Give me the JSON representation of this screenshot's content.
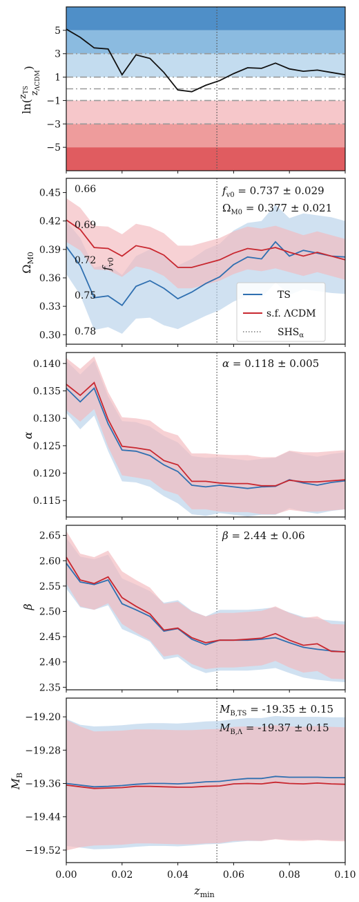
{
  "chart_data": [
    {
      "id": "ln_ratio",
      "type": "line",
      "ylabel": "ln(z_TS / z_ΛCDM)",
      "ylim": [
        -7,
        7
      ],
      "xlim": [
        0,
        0.1
      ],
      "yticks": [
        -5,
        -3,
        -1,
        1,
        3,
        5
      ],
      "ytick_labels": [
        "−5",
        "−3",
        "−1",
        "1",
        "3",
        "5"
      ],
      "bands": [
        {
          "from": 5,
          "to": 7,
          "color": "#4f8fc8"
        },
        {
          "from": 3,
          "to": 5,
          "color": "#8bbbe0"
        },
        {
          "from": 1,
          "to": 3,
          "color": "#c3dcef"
        },
        {
          "from": -1,
          "to": 1,
          "color": "#ffffff"
        },
        {
          "from": -3,
          "to": -1,
          "color": "#f6c7ca"
        },
        {
          "from": -5,
          "to": -3,
          "color": "#ee9c9c"
        },
        {
          "from": -7,
          "to": -5,
          "color": "#e05c60"
        }
      ],
      "hlines": [
        {
          "y": 3,
          "style": "dashdot"
        },
        {
          "y": 1,
          "style": "dashdot"
        },
        {
          "y": 0,
          "style": "dashdot"
        },
        {
          "y": -1,
          "style": "dashdot"
        },
        {
          "y": -3,
          "style": "dashdot"
        }
      ],
      "vline": 0.054,
      "series": [
        {
          "x": [
            0,
            0.005,
            0.01,
            0.015,
            0.02,
            0.025,
            0.03,
            0.035,
            0.04,
            0.045,
            0.05,
            0.055,
            0.06,
            0.065,
            0.07,
            0.075,
            0.08,
            0.085,
            0.09,
            0.095,
            0.1
          ],
          "y": [
            5.1,
            4.4,
            3.5,
            3.4,
            1.2,
            2.9,
            2.6,
            1.4,
            -0.1,
            -0.25,
            0.3,
            0.7,
            1.3,
            1.8,
            1.75,
            2.2,
            1.7,
            1.5,
            1.6,
            1.4,
            1.2
          ],
          "color": "#111111"
        }
      ]
    },
    {
      "id": "omega",
      "type": "line",
      "ylabel": "Ω_M0",
      "ylim": [
        0.29,
        0.465
      ],
      "xlim": [
        0,
        0.1
      ],
      "yticks": [
        0.3,
        0.33,
        0.36,
        0.39,
        0.42,
        0.45
      ],
      "ytick_labels": [
        "0.30",
        "0.33",
        "0.36",
        "0.39",
        "0.42",
        "0.45"
      ],
      "right_label": "f_v0",
      "inner_ticks": [
        "0.66",
        "0.69",
        "0.72",
        "0.75",
        "0.78"
      ],
      "annotations": [
        "f_v0 = 0.737 ± 0.029",
        "Ω_M0 = 0.377 ± 0.021"
      ],
      "legend": [
        "TS",
        "s.f. ΛCDM",
        "SHS_α"
      ],
      "vline": 0.054,
      "series": [
        {
          "name": "TS",
          "color": "#2f6fb0",
          "band": "#b7d1ea",
          "x": [
            0,
            0.005,
            0.01,
            0.015,
            0.02,
            0.025,
            0.03,
            0.035,
            0.04,
            0.045,
            0.05,
            0.055,
            0.06,
            0.065,
            0.07,
            0.075,
            0.08,
            0.085,
            0.09,
            0.095,
            0.1
          ],
          "y": [
            0.393,
            0.373,
            0.339,
            0.341,
            0.331,
            0.351,
            0.357,
            0.349,
            0.338,
            0.345,
            0.354,
            0.361,
            0.374,
            0.382,
            0.38,
            0.398,
            0.383,
            0.389,
            0.386,
            0.383,
            0.382
          ],
          "lo": [
            0.364,
            0.342,
            0.305,
            0.308,
            0.301,
            0.317,
            0.318,
            0.31,
            0.306,
            0.313,
            0.32,
            0.326,
            0.335,
            0.341,
            0.339,
            0.355,
            0.342,
            0.348,
            0.346,
            0.344,
            0.343
          ],
          "hi": [
            0.42,
            0.402,
            0.371,
            0.374,
            0.363,
            0.383,
            0.39,
            0.383,
            0.373,
            0.38,
            0.39,
            0.396,
            0.41,
            0.418,
            0.42,
            0.437,
            0.423,
            0.428,
            0.426,
            0.424,
            0.42
          ]
        },
        {
          "name": "s.f. ΛCDM",
          "color": "#c8272f",
          "band": "#f2b9bd",
          "x": [
            0,
            0.005,
            0.01,
            0.015,
            0.02,
            0.025,
            0.03,
            0.035,
            0.04,
            0.045,
            0.05,
            0.055,
            0.06,
            0.065,
            0.07,
            0.075,
            0.08,
            0.085,
            0.09,
            0.095,
            0.1
          ],
          "y": [
            0.421,
            0.411,
            0.392,
            0.391,
            0.383,
            0.394,
            0.391,
            0.384,
            0.371,
            0.371,
            0.375,
            0.379,
            0.386,
            0.391,
            0.389,
            0.392,
            0.387,
            0.383,
            0.387,
            0.383,
            0.379
          ],
          "lo": [
            0.398,
            0.389,
            0.369,
            0.368,
            0.361,
            0.372,
            0.369,
            0.362,
            0.349,
            0.349,
            0.353,
            0.357,
            0.364,
            0.369,
            0.367,
            0.37,
            0.366,
            0.362,
            0.366,
            0.362,
            0.358
          ],
          "hi": [
            0.444,
            0.434,
            0.415,
            0.414,
            0.406,
            0.417,
            0.414,
            0.407,
            0.394,
            0.394,
            0.398,
            0.402,
            0.409,
            0.414,
            0.412,
            0.415,
            0.41,
            0.405,
            0.409,
            0.405,
            0.401
          ]
        }
      ]
    },
    {
      "id": "alpha",
      "type": "line",
      "ylabel": "α",
      "ylim": [
        0.112,
        0.142
      ],
      "xlim": [
        0,
        0.1
      ],
      "yticks": [
        0.115,
        0.12,
        0.125,
        0.13,
        0.135,
        0.14
      ],
      "ytick_labels": [
        "0.115",
        "0.120",
        "0.125",
        "0.130",
        "0.135",
        "0.140"
      ],
      "annotations": [
        "α = 0.118 ± 0.005"
      ],
      "vline": 0.054,
      "series": [
        {
          "name": "TS",
          "color": "#2f6fb0",
          "band": "#b7d1ea",
          "x": [
            0,
            0.005,
            0.01,
            0.015,
            0.02,
            0.025,
            0.03,
            0.035,
            0.04,
            0.045,
            0.05,
            0.055,
            0.06,
            0.065,
            0.07,
            0.075,
            0.08,
            0.085,
            0.09,
            0.095,
            0.1
          ],
          "y": [
            0.1355,
            0.133,
            0.1355,
            0.129,
            0.1242,
            0.124,
            0.1232,
            0.1215,
            0.1203,
            0.1178,
            0.1175,
            0.1178,
            0.1175,
            0.1172,
            0.1175,
            0.1176,
            0.1188,
            0.1182,
            0.1178,
            0.1183,
            0.1186
          ],
          "lo": [
            0.131,
            0.128,
            0.1305,
            0.124,
            0.1185,
            0.1183,
            0.1175,
            0.1158,
            0.1145,
            0.1125,
            0.1122,
            0.1127,
            0.1124,
            0.1121,
            0.1124,
            0.1124,
            0.1136,
            0.113,
            0.1126,
            0.1131,
            0.1134
          ],
          "hi": [
            0.1405,
            0.138,
            0.1405,
            0.134,
            0.1295,
            0.1293,
            0.1285,
            0.1268,
            0.1256,
            0.1231,
            0.1228,
            0.1229,
            0.1226,
            0.1223,
            0.1226,
            0.1228,
            0.124,
            0.1234,
            0.123,
            0.1235,
            0.1238
          ]
        },
        {
          "name": "s.f. ΛCDM",
          "color": "#c8272f",
          "band": "#f2b9bd",
          "x": [
            0,
            0.005,
            0.01,
            0.015,
            0.02,
            0.025,
            0.03,
            0.035,
            0.04,
            0.045,
            0.05,
            0.055,
            0.06,
            0.065,
            0.07,
            0.075,
            0.08,
            0.085,
            0.09,
            0.095,
            0.1
          ],
          "y": [
            0.1362,
            0.1342,
            0.1365,
            0.1298,
            0.1249,
            0.1246,
            0.1242,
            0.1223,
            0.1215,
            0.1185,
            0.1185,
            0.1182,
            0.1181,
            0.1181,
            0.1177,
            0.1177,
            0.1187,
            0.1184,
            0.1184,
            0.1186,
            0.1188
          ],
          "lo": [
            0.1315,
            0.1294,
            0.1317,
            0.1248,
            0.1196,
            0.1192,
            0.1188,
            0.1169,
            0.1161,
            0.1134,
            0.1134,
            0.113,
            0.1129,
            0.1129,
            0.1125,
            0.1125,
            0.1133,
            0.113,
            0.113,
            0.1132,
            0.1134
          ],
          "hi": [
            0.141,
            0.139,
            0.1413,
            0.1348,
            0.1302,
            0.13,
            0.1296,
            0.1277,
            0.1269,
            0.1236,
            0.1236,
            0.1234,
            0.1233,
            0.1233,
            0.1229,
            0.1229,
            0.1241,
            0.1238,
            0.1238,
            0.124,
            0.1242
          ]
        }
      ]
    },
    {
      "id": "beta",
      "type": "line",
      "ylabel": "β",
      "ylim": [
        2.345,
        2.67
      ],
      "xlim": [
        0,
        0.1
      ],
      "yticks": [
        2.35,
        2.4,
        2.45,
        2.5,
        2.55,
        2.6,
        2.65
      ],
      "ytick_labels": [
        "2.35",
        "2.40",
        "2.45",
        "2.50",
        "2.55",
        "2.60",
        "2.65"
      ],
      "annotations": [
        "β = 2.44 ± 0.06"
      ],
      "vline": 0.054,
      "series": [
        {
          "name": "TS",
          "color": "#2f6fb0",
          "band": "#b7d1ea",
          "x": [
            0,
            0.005,
            0.01,
            0.015,
            0.02,
            0.025,
            0.03,
            0.035,
            0.04,
            0.045,
            0.05,
            0.055,
            0.06,
            0.065,
            0.07,
            0.075,
            0.08,
            0.085,
            0.09,
            0.095,
            0.1
          ],
          "y": [
            2.595,
            2.558,
            2.553,
            2.562,
            2.515,
            2.503,
            2.49,
            2.461,
            2.466,
            2.445,
            2.434,
            2.443,
            2.443,
            2.443,
            2.445,
            2.448,
            2.438,
            2.429,
            2.425,
            2.422,
            2.42
          ],
          "lo": [
            2.545,
            2.508,
            2.503,
            2.512,
            2.465,
            2.453,
            2.44,
            2.405,
            2.41,
            2.389,
            2.378,
            2.383,
            2.383,
            2.383,
            2.385,
            2.388,
            2.378,
            2.369,
            2.365,
            2.362,
            2.36
          ],
          "hi": [
            2.645,
            2.608,
            2.603,
            2.612,
            2.565,
            2.553,
            2.54,
            2.517,
            2.522,
            2.501,
            2.49,
            2.503,
            2.503,
            2.503,
            2.505,
            2.508,
            2.498,
            2.489,
            2.485,
            2.482,
            2.48
          ]
        },
        {
          "name": "s.f. ΛCDM",
          "color": "#c8272f",
          "band": "#f2b9bd",
          "x": [
            0,
            0.005,
            0.01,
            0.015,
            0.02,
            0.025,
            0.03,
            0.035,
            0.04,
            0.045,
            0.05,
            0.055,
            0.06,
            0.065,
            0.07,
            0.075,
            0.08,
            0.085,
            0.09,
            0.095,
            0.1
          ],
          "y": [
            2.607,
            2.562,
            2.555,
            2.568,
            2.527,
            2.51,
            2.495,
            2.463,
            2.467,
            2.448,
            2.438,
            2.443,
            2.443,
            2.445,
            2.447,
            2.456,
            2.443,
            2.433,
            2.436,
            2.421,
            2.42
          ],
          "lo": [
            2.555,
            2.51,
            2.503,
            2.516,
            2.475,
            2.458,
            2.443,
            2.411,
            2.415,
            2.396,
            2.386,
            2.389,
            2.389,
            2.391,
            2.393,
            2.402,
            2.389,
            2.379,
            2.382,
            2.367,
            2.366
          ],
          "hi": [
            2.659,
            2.614,
            2.607,
            2.62,
            2.579,
            2.562,
            2.547,
            2.515,
            2.519,
            2.5,
            2.49,
            2.497,
            2.497,
            2.499,
            2.501,
            2.51,
            2.497,
            2.487,
            2.49,
            2.475,
            2.474
          ]
        }
      ]
    },
    {
      "id": "mb",
      "type": "line",
      "ylabel": "M_B",
      "xlabel": "z_min",
      "ylim": [
        -19.55,
        -19.155
      ],
      "xlim": [
        0,
        0.1
      ],
      "yticks": [
        -19.52,
        -19.44,
        -19.36,
        -19.28,
        -19.2
      ],
      "ytick_labels": [
        "−19.52",
        "−19.44",
        "−19.36",
        "−19.28",
        "−19.20"
      ],
      "xticks": [
        0,
        0.02,
        0.04,
        0.06,
        0.08,
        0.1
      ],
      "xtick_labels": [
        "0.00",
        "0.02",
        "0.04",
        "0.06",
        "0.08",
        "0.10"
      ],
      "annotations": [
        "M_B,TS = -19.35 ± 0.15",
        "M_B,Λ = -19.37 ± 0.15"
      ],
      "vline": 0.054,
      "series": [
        {
          "name": "TS",
          "color": "#2f6fb0",
          "band": "#b7d1ea",
          "x": [
            0,
            0.005,
            0.01,
            0.015,
            0.02,
            0.025,
            0.03,
            0.035,
            0.04,
            0.045,
            0.05,
            0.055,
            0.06,
            0.065,
            0.07,
            0.075,
            0.08,
            0.085,
            0.09,
            0.095,
            0.1
          ],
          "y": [
            -19.36,
            -19.364,
            -19.368,
            -19.367,
            -19.365,
            -19.362,
            -19.36,
            -19.36,
            -19.361,
            -19.359,
            -19.356,
            -19.355,
            -19.351,
            -19.348,
            -19.348,
            -19.343,
            -19.345,
            -19.345,
            -19.345,
            -19.346,
            -19.346
          ],
          "lo": [
            -19.51,
            -19.514,
            -19.518,
            -19.517,
            -19.515,
            -19.512,
            -19.51,
            -19.51,
            -19.511,
            -19.509,
            -19.506,
            -19.505,
            -19.501,
            -19.498,
            -19.498,
            -19.493,
            -19.495,
            -19.495,
            -19.495,
            -19.496,
            -19.496
          ],
          "hi": [
            -19.205,
            -19.219,
            -19.223,
            -19.222,
            -19.22,
            -19.217,
            -19.215,
            -19.215,
            -19.216,
            -19.214,
            -19.211,
            -19.21,
            -19.206,
            -19.203,
            -19.203,
            -19.198,
            -19.2,
            -19.2,
            -19.2,
            -19.201,
            -19.201
          ]
        },
        {
          "name": "s.f. ΛCDM",
          "color": "#c8272f",
          "band": "#f2b9bd",
          "x": [
            0,
            0.005,
            0.01,
            0.015,
            0.02,
            0.025,
            0.03,
            0.035,
            0.04,
            0.045,
            0.05,
            0.055,
            0.06,
            0.065,
            0.07,
            0.075,
            0.08,
            0.085,
            0.09,
            0.095,
            0.1
          ],
          "y": [
            -19.364,
            -19.368,
            -19.372,
            -19.371,
            -19.37,
            -19.367,
            -19.367,
            -19.368,
            -19.369,
            -19.369,
            -19.367,
            -19.366,
            -19.361,
            -19.36,
            -19.361,
            -19.357,
            -19.36,
            -19.361,
            -19.359,
            -19.361,
            -19.362
          ],
          "lo": [
            -19.521,
            -19.513,
            -19.509,
            -19.508,
            -19.507,
            -19.504,
            -19.504,
            -19.505,
            -19.506,
            -19.506,
            -19.504,
            -19.503,
            -19.498,
            -19.497,
            -19.498,
            -19.494,
            -19.497,
            -19.498,
            -19.496,
            -19.498,
            -19.499
          ],
          "hi": [
            -19.207,
            -19.223,
            -19.235,
            -19.234,
            -19.233,
            -19.23,
            -19.23,
            -19.231,
            -19.232,
            -19.232,
            -19.23,
            -19.229,
            -19.224,
            -19.223,
            -19.224,
            -19.22,
            -19.223,
            -19.224,
            -19.222,
            -19.224,
            -19.225
          ]
        }
      ]
    }
  ]
}
